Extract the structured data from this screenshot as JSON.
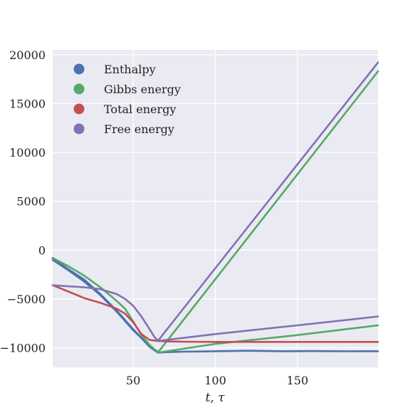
{
  "chart_data": {
    "type": "line",
    "title": "",
    "xlabel": "t, τ",
    "ylabel": "",
    "xlim": [
      1,
      199
    ],
    "ylim": [
      -12000,
      20500
    ],
    "xticks": [
      50,
      100,
      150
    ],
    "yticks": [
      -10000,
      -5000,
      0,
      5000,
      10000,
      15000,
      20000
    ],
    "ytick_labels": [
      "−10000",
      "−5000",
      "0",
      "5000",
      "10000",
      "15000",
      "20000"
    ],
    "grid": true,
    "legend": {
      "placement": "top-left",
      "entries": [
        {
          "label": "Enthalpy",
          "color": "#4c72b0"
        },
        {
          "label": "Gibbs energy",
          "color": "#55a868"
        },
        {
          "label": "Total energy",
          "color": "#c44e52"
        },
        {
          "label": "Free energy",
          "color": "#8172b2"
        }
      ]
    },
    "series": [
      {
        "color": "#4c72b0",
        "x": [
          1,
          10,
          20,
          30,
          40,
          50,
          55,
          60,
          65,
          70,
          80,
          90,
          100,
          120,
          140,
          160,
          180,
          199
        ],
        "y": [
          -1000,
          -2000,
          -3200,
          -4600,
          -6300,
          -8200,
          -9000,
          -9900,
          -10500,
          -10450,
          -10400,
          -10380,
          -10350,
          -10300,
          -10350,
          -10340,
          -10360,
          -10350
        ]
      },
      {
        "color": "#4c72b0",
        "x": [
          1,
          10,
          20,
          30,
          40,
          50,
          55,
          60,
          65
        ],
        "y": [
          -800,
          -1900,
          -3000,
          -4500,
          -6200,
          -8100,
          -9000,
          -9800,
          -10400
        ]
      },
      {
        "color": "#55a868",
        "x": [
          1,
          10,
          20,
          30,
          40,
          45,
          50,
          55,
          60,
          65
        ],
        "y": [
          -800,
          -1600,
          -2600,
          -3800,
          -5200,
          -6000,
          -7300,
          -8700,
          -9700,
          -10500
        ]
      },
      {
        "color": "#55a868",
        "x": [
          65,
          199
        ],
        "y": [
          -10500,
          18300
        ]
      },
      {
        "color": "#55a868",
        "x": [
          65,
          100,
          150,
          199
        ],
        "y": [
          -10500,
          -9600,
          -8700,
          -7700
        ]
      },
      {
        "color": "#c44e52",
        "x": [
          1,
          10,
          20,
          30,
          40,
          45,
          50,
          55,
          60,
          65,
          70,
          80,
          100,
          150,
          199
        ],
        "y": [
          -3600,
          -4200,
          -4900,
          -5400,
          -6000,
          -6500,
          -7400,
          -8600,
          -9200,
          -9300,
          -9350,
          -9380,
          -9400,
          -9400,
          -9400
        ]
      },
      {
        "color": "#8172b2",
        "x": [
          1,
          10,
          20,
          30,
          40,
          45,
          50,
          55,
          60,
          63,
          65
        ],
        "y": [
          -3600,
          -3700,
          -3800,
          -4000,
          -4500,
          -5000,
          -5700,
          -6800,
          -8100,
          -8900,
          -9300
        ]
      },
      {
        "color": "#8172b2",
        "x": [
          65,
          199
        ],
        "y": [
          -9300,
          19200
        ]
      },
      {
        "color": "#8172b2",
        "x": [
          65,
          100,
          150,
          199
        ],
        "y": [
          -9300,
          -8600,
          -7700,
          -6800
        ]
      }
    ]
  }
}
